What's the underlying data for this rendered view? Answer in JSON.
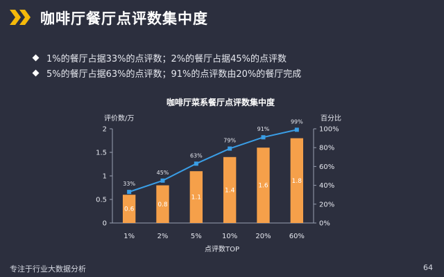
{
  "slide": {
    "title": "咖啡厅餐厅点评数集中度",
    "bullets": [
      "1%的餐厅占据33%的点评数；2%的餐厅占据45%的点评数",
      "5%的餐厅占据63%的点评数；91%的点评数由20%的餐厅完成"
    ],
    "footer_left": "专注于行业大数据分析",
    "page_number": "64",
    "accent_color": "#f5b90a",
    "icon": "double-chevron-icon"
  },
  "chart_data": {
    "type": "bar",
    "title": "咖啡厅菜系餐厅点评数集中度",
    "xlabel": "点评数TOP",
    "ylabel": "评价数/万",
    "y2label": "百分比",
    "categories": [
      "1%",
      "2%",
      "5%",
      "10%",
      "20%",
      "60%"
    ],
    "ylim": [
      0,
      2
    ],
    "yticks": [
      "0",
      "0.5",
      "1",
      "1.5",
      "2"
    ],
    "y2lim": [
      0,
      100
    ],
    "y2ticks": [
      "0%",
      "20%",
      "40%",
      "60%",
      "80%",
      "100%"
    ],
    "grid": false,
    "series": [
      {
        "type": "bar",
        "axis": "left",
        "values": [
          0.6,
          0.8,
          1.1,
          1.4,
          1.6,
          1.8
        ],
        "labels": [
          "0.6",
          "0.8",
          "1.1",
          "1.4",
          "1.6",
          "1.8"
        ],
        "color": "#f5a04a"
      },
      {
        "type": "line",
        "axis": "right",
        "values": [
          33,
          45,
          63,
          79,
          91,
          99
        ],
        "labels": [
          "33%",
          "45%",
          "63%",
          "79%",
          "91%",
          "99%"
        ],
        "color": "#3a9ee6"
      }
    ]
  }
}
